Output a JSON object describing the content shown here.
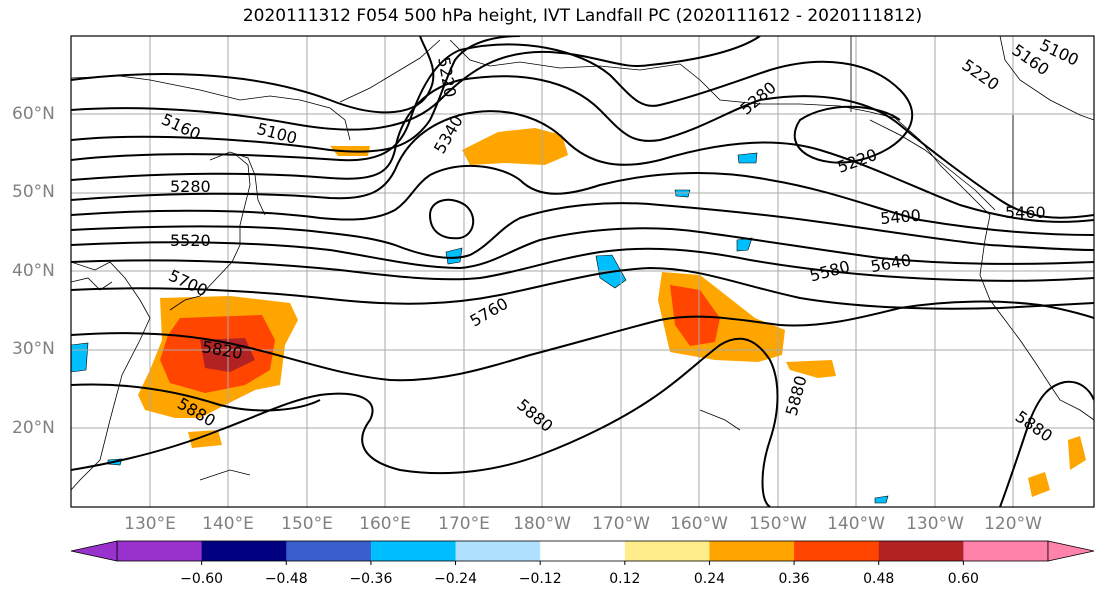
{
  "title": "2020111312 F054 500 hPa height, IVT Landfall PC (2020111612 - 2020111812)",
  "lat_labels": [
    "60°N",
    "50°N",
    "40°N",
    "30°N",
    "20°N"
  ],
  "lon_labels": [
    "130°E",
    "140°E",
    "150°E",
    "160°E",
    "170°E",
    "180°W",
    "170°W",
    "160°W",
    "150°W",
    "140°W",
    "130°W",
    "120°W"
  ],
  "contour_labels": [
    "5220",
    "5340",
    "5280",
    "5160",
    "5100",
    "5160",
    "5220",
    "5100",
    "5220",
    "5280",
    "5520",
    "5400",
    "5460",
    "5580",
    "5640",
    "5700",
    "5760",
    "5820",
    "5880",
    "5880",
    "5880",
    "5880"
  ],
  "colorbar": {
    "ticks": [
      "−0.60",
      "−0.48",
      "−0.36",
      "−0.24",
      "−0.12",
      "0.12",
      "0.24",
      "0.36",
      "0.48",
      "0.60"
    ],
    "colors": [
      "#9932cc",
      "#000080",
      "#3a5fcd",
      "#00bfff",
      "#b0e2ff",
      "#ffffff",
      "#ffec8b",
      "#ffa500",
      "#ff4500",
      "#b22222",
      "#ff82ab"
    ]
  }
}
